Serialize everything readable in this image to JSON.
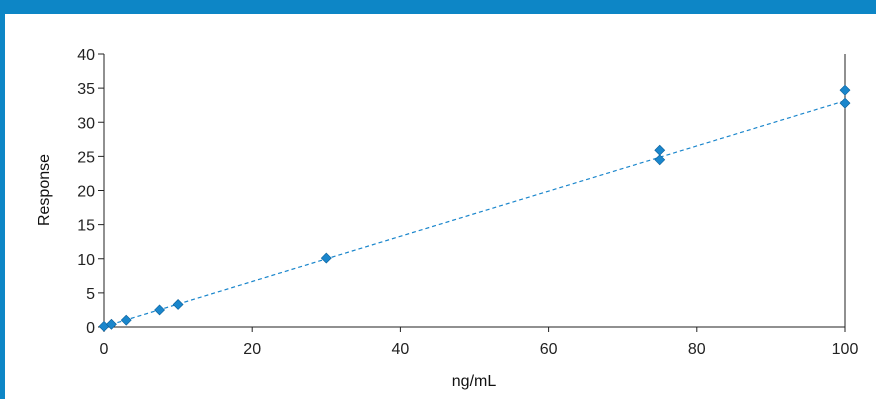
{
  "header": {
    "caption": ""
  },
  "colors": {
    "accent": "#0d86c6",
    "series": "#1a86cc",
    "axis": "#222222"
  },
  "chart_data": {
    "type": "scatter",
    "title": "",
    "xlabel": "ng/mL",
    "ylabel": "Response",
    "xlim": [
      0,
      100
    ],
    "ylim": [
      0,
      40
    ],
    "x_ticks": [
      0,
      20,
      40,
      60,
      80,
      100
    ],
    "y_ticks": [
      0,
      5,
      10,
      15,
      20,
      25,
      30,
      35,
      40
    ],
    "grid": false,
    "legend": "none",
    "series": [
      {
        "points": [
          {
            "x": 0,
            "y": 0.1
          },
          {
            "x": 1,
            "y": 0.4
          },
          {
            "x": 3,
            "y": 1.0
          },
          {
            "x": 7.5,
            "y": 2.5
          },
          {
            "x": 10,
            "y": 3.3
          },
          {
            "x": 30,
            "y": 10.1
          },
          {
            "x": 75,
            "y": 24.5
          },
          {
            "x": 75,
            "y": 25.9
          },
          {
            "x": 100,
            "y": 32.8
          },
          {
            "x": 100,
            "y": 34.7
          }
        ]
      }
    ],
    "trendline": {
      "type": "linear",
      "style": "dashed",
      "slope": 0.331,
      "intercept": 0.05
    }
  }
}
